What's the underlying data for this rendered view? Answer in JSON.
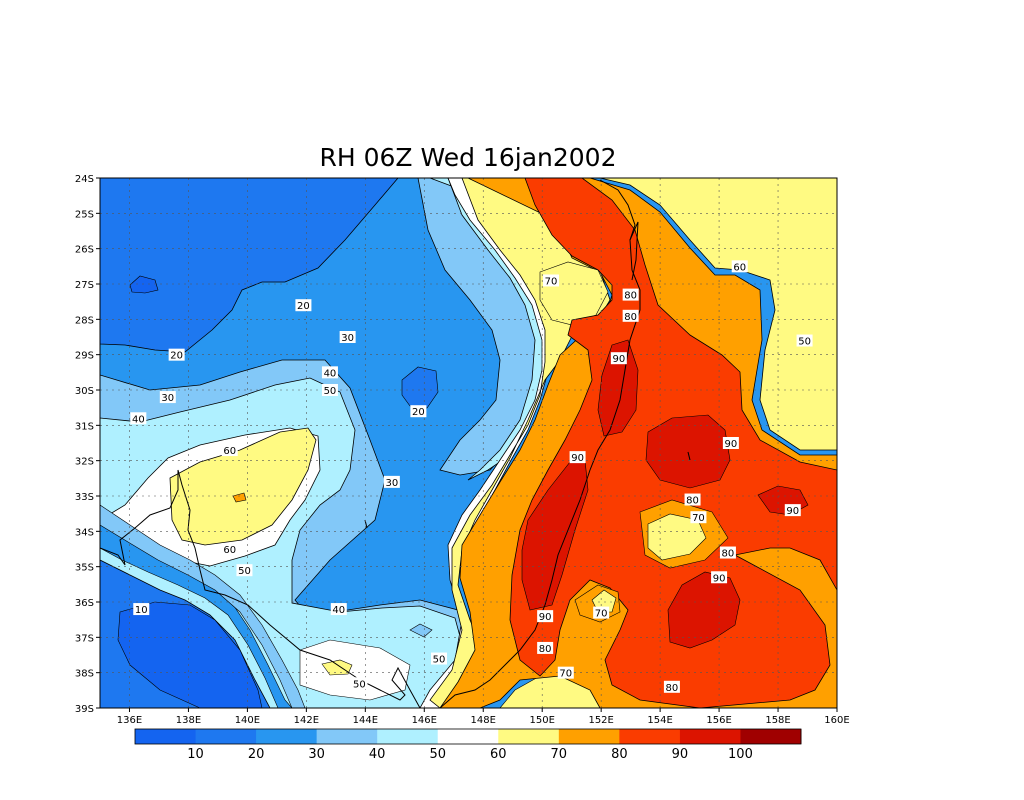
{
  "title": "RH 06Z Wed 16jan2002",
  "map": {
    "lon_range": [
      135,
      160
    ],
    "lat_range": [
      -39,
      -24
    ],
    "x_ticks": [
      {
        "value": 136,
        "label": "136E"
      },
      {
        "value": 138,
        "label": "138E"
      },
      {
        "value": 140,
        "label": "140E"
      },
      {
        "value": 142,
        "label": "142E"
      },
      {
        "value": 144,
        "label": "144E"
      },
      {
        "value": 146,
        "label": "146E"
      },
      {
        "value": 148,
        "label": "148E"
      },
      {
        "value": 150,
        "label": "150E"
      },
      {
        "value": 152,
        "label": "152E"
      },
      {
        "value": 154,
        "label": "154E"
      },
      {
        "value": 156,
        "label": "156E"
      },
      {
        "value": 158,
        "label": "158E"
      },
      {
        "value": 160,
        "label": "160E"
      }
    ],
    "y_ticks": [
      {
        "value": -24,
        "label": "24S"
      },
      {
        "value": -25,
        "label": "25S"
      },
      {
        "value": -26,
        "label": "26S"
      },
      {
        "value": -27,
        "label": "27S"
      },
      {
        "value": -28,
        "label": "28S"
      },
      {
        "value": -29,
        "label": "29S"
      },
      {
        "value": -30,
        "label": "30S"
      },
      {
        "value": -31,
        "label": "31S"
      },
      {
        "value": -32,
        "label": "32S"
      },
      {
        "value": -33,
        "label": "33S"
      },
      {
        "value": -34,
        "label": "34S"
      },
      {
        "value": -35,
        "label": "35S"
      },
      {
        "value": -36,
        "label": "36S"
      },
      {
        "value": -37,
        "label": "37S"
      },
      {
        "value": -38,
        "label": "38S"
      },
      {
        "value": -39,
        "label": "39S"
      }
    ],
    "grid": "dotted"
  },
  "colorbar": {
    "labels": [
      "10",
      "20",
      "30",
      "40",
      "50",
      "60",
      "70",
      "80",
      "90",
      "100"
    ],
    "colors": [
      "#1464f0",
      "#1e78f0",
      "#2896f0",
      "#82c8f8",
      "#aff0ff",
      "#ffffff",
      "#fffa82",
      "#ffa000",
      "#fa3c00",
      "#dc1400",
      "#a00000"
    ]
  },
  "contour_labels": [
    {
      "text": "20",
      "lon": 141.9,
      "lat": -27.6
    },
    {
      "text": "30",
      "lon": 143.4,
      "lat": -28.5
    },
    {
      "text": "20",
      "lon": 137.6,
      "lat": -29.0
    },
    {
      "text": "30",
      "lon": 137.3,
      "lat": -30.2
    },
    {
      "text": "40",
      "lon": 136.3,
      "lat": -30.8
    },
    {
      "text": "40",
      "lon": 142.8,
      "lat": -29.5
    },
    {
      "text": "50",
      "lon": 142.8,
      "lat": -30.0
    },
    {
      "text": "20",
      "lon": 145.8,
      "lat": -30.6
    },
    {
      "text": "60",
      "lon": 139.4,
      "lat": -31.7
    },
    {
      "text": "30",
      "lon": 144.9,
      "lat": -32.6
    },
    {
      "text": "60",
      "lon": 139.4,
      "lat": -34.5
    },
    {
      "text": "50",
      "lon": 139.9,
      "lat": -35.1
    },
    {
      "text": "10",
      "lon": 136.4,
      "lat": -36.2
    },
    {
      "text": "40",
      "lon": 143.1,
      "lat": -36.2
    },
    {
      "text": "50",
      "lon": 146.5,
      "lat": -37.6
    },
    {
      "text": "50",
      "lon": 143.8,
      "lat": -38.3
    },
    {
      "text": "70",
      "lon": 150.3,
      "lat": -26.9
    },
    {
      "text": "80",
      "lon": 153.0,
      "lat": -27.3
    },
    {
      "text": "80",
      "lon": 153.0,
      "lat": -27.9
    },
    {
      "text": "90",
      "lon": 152.6,
      "lat": -29.1
    },
    {
      "text": "90",
      "lon": 156.4,
      "lat": -31.5
    },
    {
      "text": "90",
      "lon": 151.2,
      "lat": -31.9
    },
    {
      "text": "80",
      "lon": 155.1,
      "lat": -33.1
    },
    {
      "text": "70",
      "lon": 155.3,
      "lat": -33.6
    },
    {
      "text": "80",
      "lon": 156.3,
      "lat": -34.6
    },
    {
      "text": "90",
      "lon": 156.0,
      "lat": -35.3
    },
    {
      "text": "90",
      "lon": 158.5,
      "lat": -33.4
    },
    {
      "text": "60",
      "lon": 156.7,
      "lat": -26.5
    },
    {
      "text": "50",
      "lon": 158.9,
      "lat": -28.6
    },
    {
      "text": "70",
      "lon": 152.0,
      "lat": -36.3
    },
    {
      "text": "90",
      "lon": 150.1,
      "lat": -36.4
    },
    {
      "text": "80",
      "lon": 150.1,
      "lat": -37.3
    },
    {
      "text": "70",
      "lon": 150.8,
      "lat": -38.0
    },
    {
      "text": "80",
      "lon": 154.4,
      "lat": -38.4
    }
  ]
}
